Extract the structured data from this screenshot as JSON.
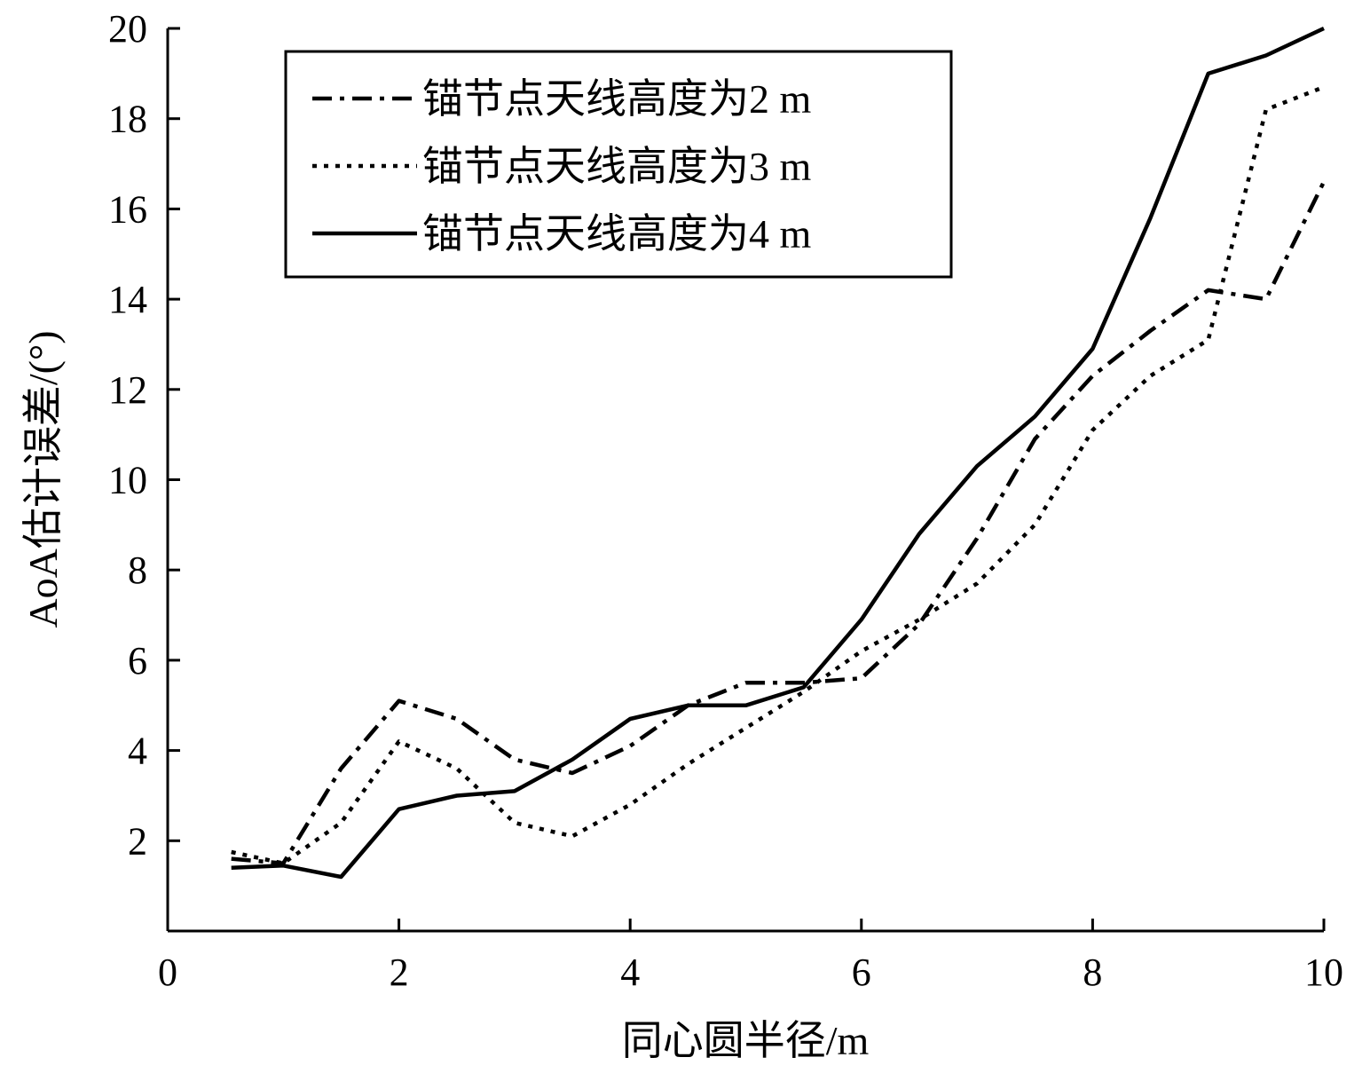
{
  "chart_data": {
    "type": "line",
    "title": "",
    "xlabel": "同心圆半径/m",
    "ylabel": "AoA估计误差/(°)",
    "xlim": [
      0,
      10
    ],
    "ylim": [
      0,
      20
    ],
    "xticks": [
      "0",
      "2",
      "4",
      "6",
      "8",
      "10"
    ],
    "xtick_values": [
      0,
      2,
      4,
      6,
      8,
      10
    ],
    "yticks": [
      "2",
      "4",
      "6",
      "8",
      "10",
      "12",
      "14",
      "16",
      "18",
      "20"
    ],
    "ytick_values": [
      2,
      4,
      6,
      8,
      10,
      12,
      14,
      16,
      18,
      20
    ],
    "grid": false,
    "legend_position": "top-left",
    "series": [
      {
        "name": "锚节点天线高度为2 m",
        "style": "dashdot",
        "color": "#000000",
        "x": [
          0.55,
          1.0,
          1.5,
          2.0,
          2.5,
          3.0,
          3.5,
          4.0,
          4.5,
          5.0,
          5.5,
          6.0,
          6.5,
          7.0,
          7.5,
          8.0,
          8.5,
          9.0,
          9.5,
          10.0
        ],
        "y": [
          1.6,
          1.5,
          3.6,
          5.1,
          4.7,
          3.8,
          3.5,
          4.1,
          5.0,
          5.5,
          5.5,
          5.6,
          6.8,
          8.7,
          10.9,
          12.3,
          13.3,
          14.2,
          14.0,
          16.6
        ]
      },
      {
        "name": "锚节点天线高度为3 m",
        "style": "dotted",
        "color": "#000000",
        "x": [
          0.55,
          1.0,
          1.5,
          2.0,
          2.5,
          3.0,
          3.5,
          4.0,
          4.5,
          5.0,
          5.5,
          6.0,
          6.5,
          7.0,
          7.5,
          8.0,
          8.5,
          9.0,
          9.5,
          10.0
        ],
        "y": [
          1.75,
          1.5,
          2.4,
          4.2,
          3.6,
          2.4,
          2.1,
          2.8,
          3.7,
          4.5,
          5.3,
          6.2,
          6.9,
          7.7,
          9.0,
          11.1,
          12.3,
          13.1,
          18.2,
          18.7
        ]
      },
      {
        "name": "锚节点天线高度为4 m",
        "style": "solid",
        "color": "#000000",
        "x": [
          0.55,
          1.0,
          1.5,
          2.0,
          2.5,
          3.0,
          3.5,
          4.0,
          4.5,
          5.0,
          5.5,
          6.0,
          6.5,
          7.0,
          7.5,
          8.0,
          8.5,
          9.0,
          9.5,
          10.0
        ],
        "y": [
          1.4,
          1.45,
          1.2,
          2.7,
          3.0,
          3.1,
          3.8,
          4.7,
          5.0,
          5.0,
          5.4,
          6.9,
          8.8,
          10.3,
          11.4,
          12.9,
          15.8,
          19.0,
          19.4,
          20.0
        ]
      }
    ]
  }
}
